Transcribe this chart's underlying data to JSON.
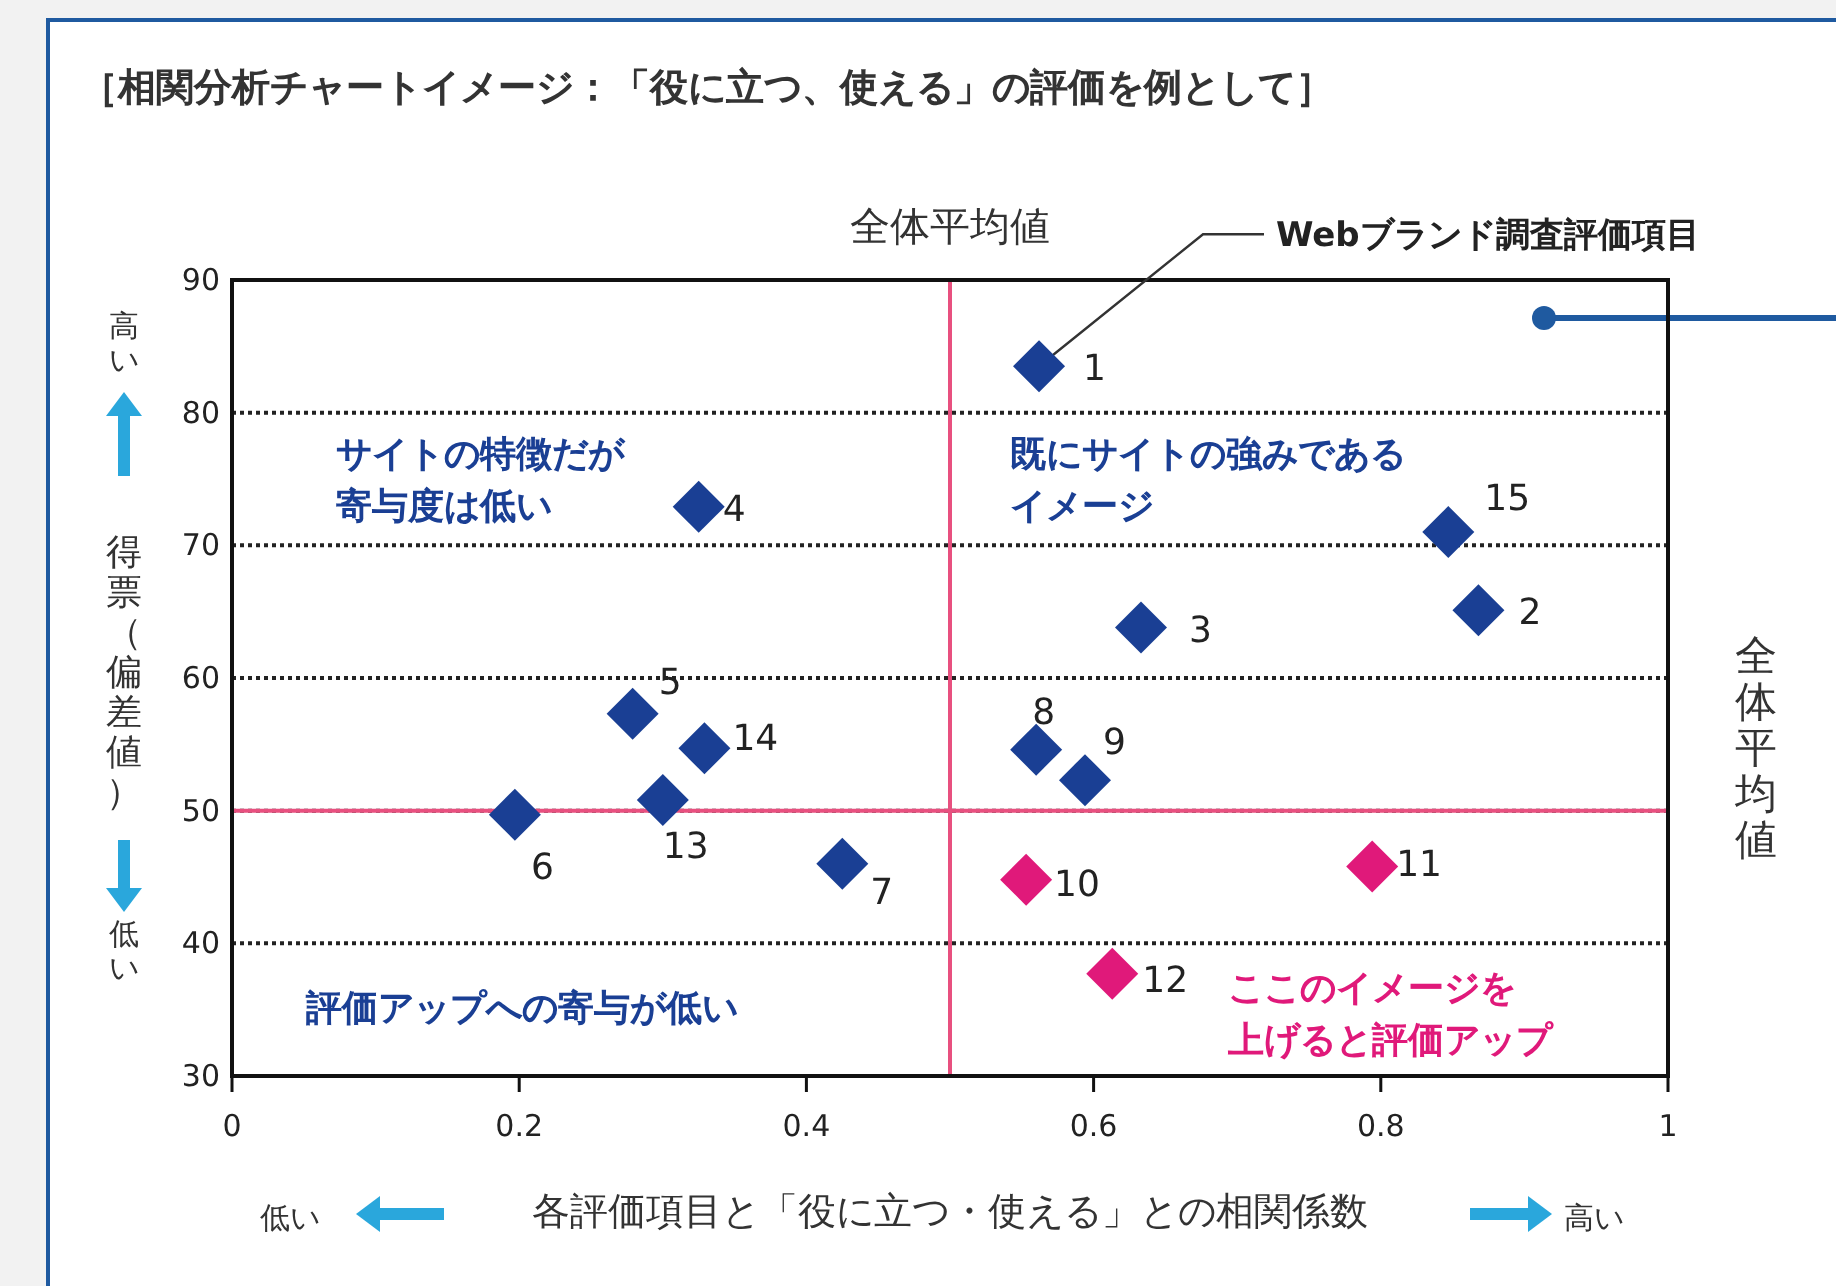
{
  "chart_data": {
    "type": "scatter",
    "title": "［相関分析チャートイメージ：「役に立つ、使える」の評価を例として］",
    "xlabel": "各評価項目と「役に立つ・使える」との相関係数",
    "ylabel": "得票（偏差値）",
    "xlim": [
      0,
      1
    ],
    "ylim": [
      30,
      90
    ],
    "xticks": [
      0,
      0.2,
      0.4,
      0.6,
      0.8,
      1
    ],
    "yticks": [
      30,
      40,
      50,
      60,
      70,
      80,
      90
    ],
    "grid": "y",
    "marker": "diamond",
    "series": [
      {
        "color": "#1a3f94",
        "x": [
          0.562,
          0.868,
          0.633,
          0.325,
          0.279,
          0.197,
          0.425,
          0.56,
          0.594,
          0.3,
          0.329,
          0.847
        ],
        "values": [
          83.5,
          65.1,
          63.8,
          72.9,
          57.3,
          49.7,
          46.0,
          54.6,
          52.3,
          50.8,
          54.7,
          71.0
        ]
      },
      {
        "color": "#e0197a",
        "x": [
          0.553,
          0.794,
          0.613
        ],
        "values": [
          44.8,
          45.8,
          37.7
        ]
      }
    ],
    "ref_lines": [
      {
        "axis": "x",
        "value": 0.5,
        "label": "全体平均値",
        "color": "#e8507f"
      },
      {
        "axis": "y",
        "value": 50,
        "label": "全体平均値",
        "color": "#e8507f"
      }
    ],
    "annotations": [
      "サイトの特徴だが寄与度は低い",
      "既にサイトの強みであるイメージ",
      "評価アップへの寄与が低い",
      "ここのイメージを上げると評価アップ",
      {
        "text": "Webブランド調査評価項目",
        "x": 0.562,
        "y": 83.5
      },
      "低い",
      "高い",
      "高い",
      "低い",
      {
        "text": "1",
        "x": 0.562,
        "y": 83.5
      },
      {
        "text": "2",
        "x": 0.868,
        "y": 65.1
      },
      {
        "text": "3",
        "x": 0.633,
        "y": 63.8
      },
      {
        "text": "4",
        "x": 0.325,
        "y": 72.9
      },
      {
        "text": "5",
        "x": 0.279,
        "y": 57.3
      },
      {
        "text": "6",
        "x": 0.197,
        "y": 49.7
      },
      {
        "text": "7",
        "x": 0.425,
        "y": 46.0
      },
      {
        "text": "8",
        "x": 0.56,
        "y": 54.6
      },
      {
        "text": "9",
        "x": 0.594,
        "y": 52.3
      },
      {
        "text": "10",
        "x": 0.553,
        "y": 44.8
      },
      {
        "text": "11",
        "x": 0.794,
        "y": 45.8
      },
      {
        "text": "12",
        "x": 0.613,
        "y": 37.7
      },
      {
        "text": "13",
        "x": 0.3,
        "y": 50.8
      },
      {
        "text": "14",
        "x": 0.329,
        "y": 54.7
      },
      {
        "text": "15",
        "x": 0.847,
        "y": 71.0
      }
    ]
  }
}
